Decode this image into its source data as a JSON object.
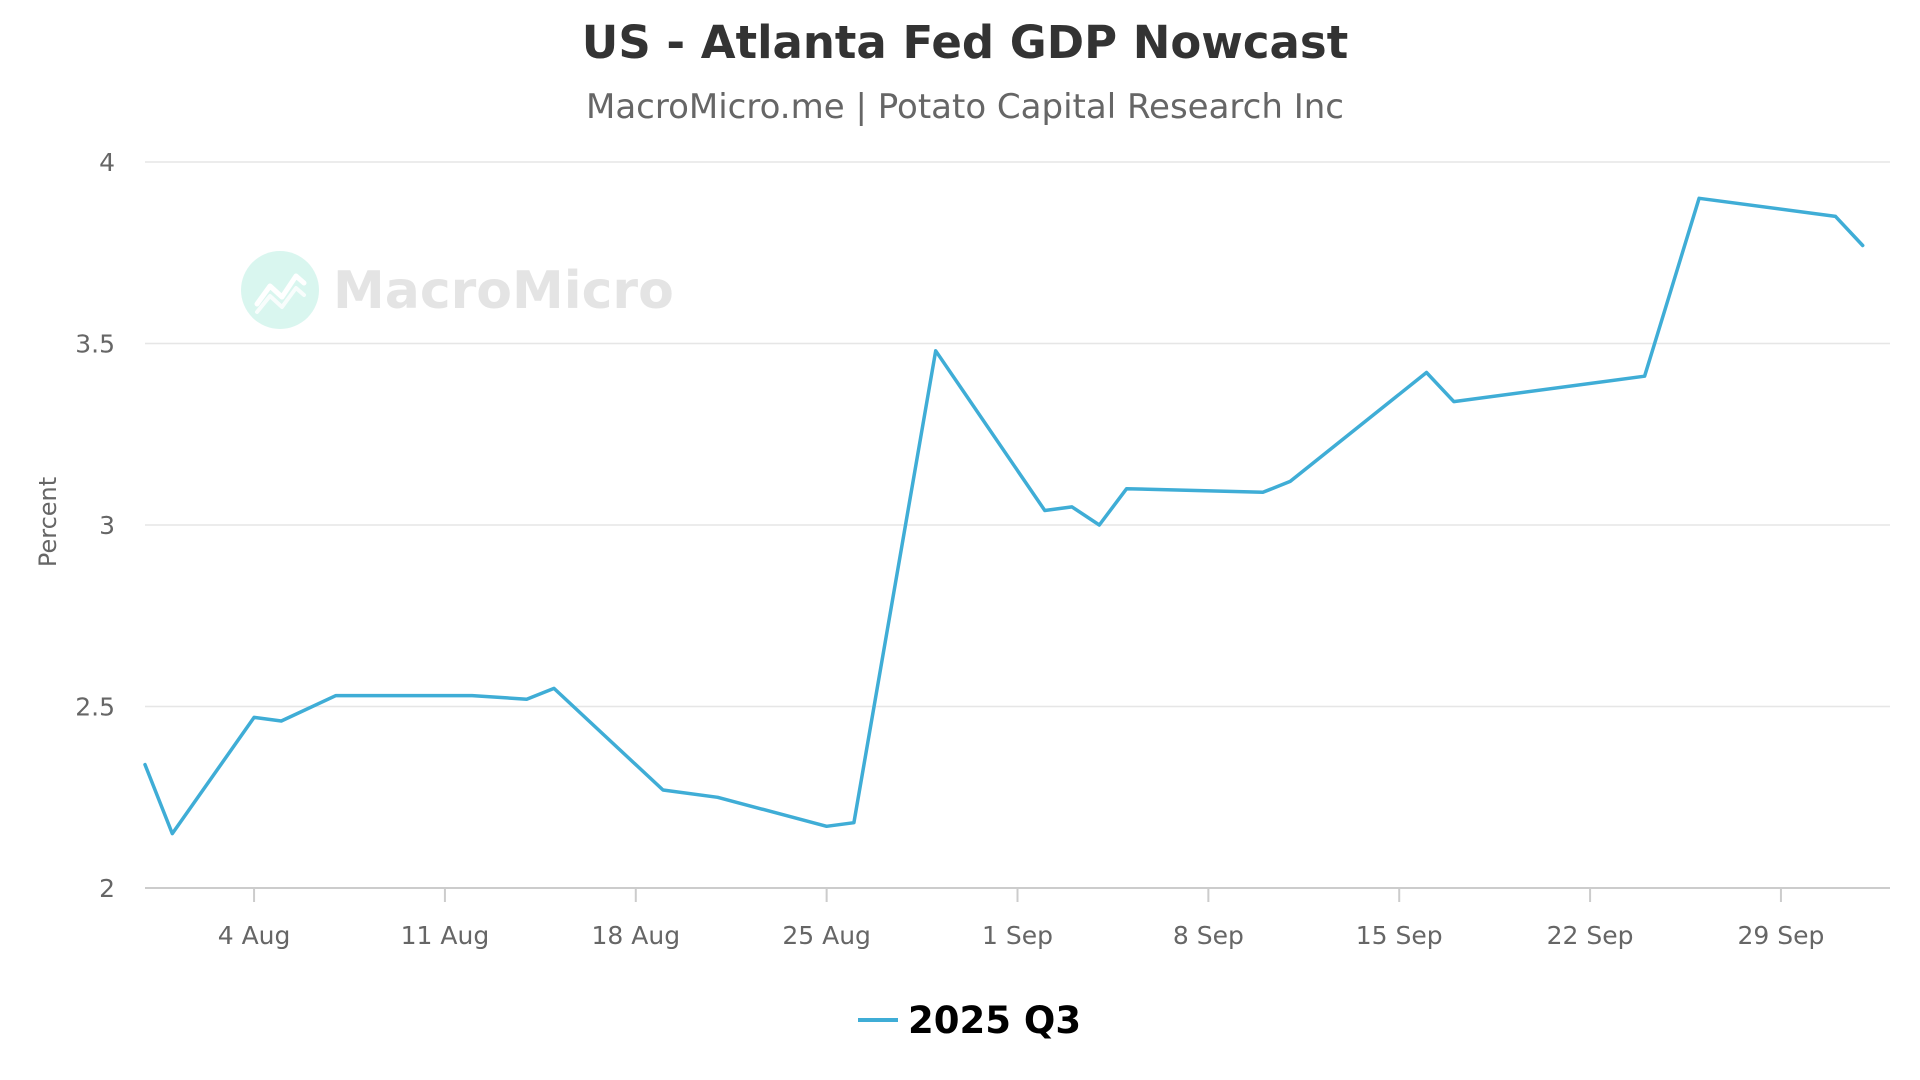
{
  "chart_data": {
    "type": "line",
    "title": "US - Atlanta Fed GDP Nowcast",
    "subtitle": "MacroMicro.me | Potato Capital Research Inc",
    "ylabel": "Percent",
    "xlabel": "",
    "ylim": [
      2,
      4
    ],
    "yticks": [
      2,
      2.5,
      3,
      3.5,
      4
    ],
    "xlim": [
      "2025-07-31",
      "2025-10-03"
    ],
    "xticks": [
      {
        "date": "2025-08-04",
        "label": "4 Aug"
      },
      {
        "date": "2025-08-11",
        "label": "11 Aug"
      },
      {
        "date": "2025-08-18",
        "label": "18 Aug"
      },
      {
        "date": "2025-08-25",
        "label": "25 Aug"
      },
      {
        "date": "2025-09-01",
        "label": "1 Sep"
      },
      {
        "date": "2025-09-08",
        "label": "8 Sep"
      },
      {
        "date": "2025-09-15",
        "label": "15 Sep"
      },
      {
        "date": "2025-09-22",
        "label": "22 Sep"
      },
      {
        "date": "2025-09-29",
        "label": "29 Sep"
      }
    ],
    "grid": true,
    "legend_position": "bottom-center",
    "series": [
      {
        "name": "2025 Q3",
        "color": "#3fadd6",
        "points": [
          {
            "x": "2025-07-31",
            "y": 2.34
          },
          {
            "x": "2025-08-01",
            "y": 2.15
          },
          {
            "x": "2025-08-04",
            "y": 2.47
          },
          {
            "x": "2025-08-05",
            "y": 2.46
          },
          {
            "x": "2025-08-07",
            "y": 2.53
          },
          {
            "x": "2025-08-12",
            "y": 2.53
          },
          {
            "x": "2025-08-14",
            "y": 2.52
          },
          {
            "x": "2025-08-15",
            "y": 2.55
          },
          {
            "x": "2025-08-19",
            "y": 2.27
          },
          {
            "x": "2025-08-21",
            "y": 2.25
          },
          {
            "x": "2025-08-25",
            "y": 2.17
          },
          {
            "x": "2025-08-26",
            "y": 2.18
          },
          {
            "x": "2025-08-29",
            "y": 3.48
          },
          {
            "x": "2025-09-02",
            "y": 3.04
          },
          {
            "x": "2025-09-03",
            "y": 3.05
          },
          {
            "x": "2025-09-04",
            "y": 3.0
          },
          {
            "x": "2025-09-05",
            "y": 3.1
          },
          {
            "x": "2025-09-10",
            "y": 3.09
          },
          {
            "x": "2025-09-11",
            "y": 3.12
          },
          {
            "x": "2025-09-16",
            "y": 3.42
          },
          {
            "x": "2025-09-17",
            "y": 3.34
          },
          {
            "x": "2025-09-24",
            "y": 3.41
          },
          {
            "x": "2025-09-26",
            "y": 3.9
          },
          {
            "x": "2025-10-01",
            "y": 3.85
          },
          {
            "x": "2025-10-02",
            "y": 3.77
          }
        ]
      }
    ]
  },
  "watermark": {
    "text": "MacroMicro",
    "icon": "chart-trend-icon",
    "color": "#e4e4e4"
  }
}
